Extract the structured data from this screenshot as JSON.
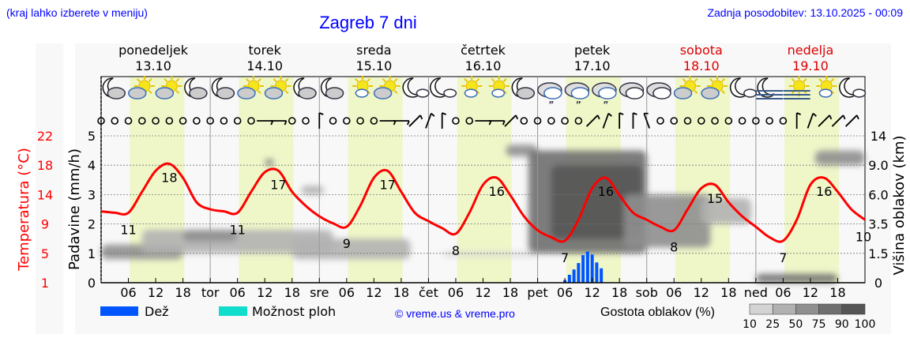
{
  "header": {
    "region_hint": "(kraj lahko izberete v meniju)",
    "title": "Zagreb 7 dni",
    "updated": "Zadnja posodobitev: 13.10.2025 - 00:09"
  },
  "colors": {
    "title": "#0000ff",
    "temperature": "#ff0000",
    "rain": "#0055ff",
    "showers": "#11ddcc",
    "daylight": "#eff7c9",
    "weekend": "#dd0000"
  },
  "chart_data": {
    "type": "line",
    "days": [
      {
        "name": "ponedeljek",
        "date": "13.10",
        "abbr": "",
        "weekend": false
      },
      {
        "name": "torek",
        "date": "14.10",
        "abbr": "tor",
        "weekend": false
      },
      {
        "name": "sreda",
        "date": "15.10",
        "abbr": "sre",
        "weekend": false
      },
      {
        "name": "četrtek",
        "date": "16.10",
        "abbr": "čet",
        "weekend": false
      },
      {
        "name": "petek",
        "date": "17.10",
        "abbr": "pet",
        "weekend": false
      },
      {
        "name": "sobota",
        "date": "18.10",
        "abbr": "sob",
        "weekend": true
      },
      {
        "name": "nedelja",
        "date": "19.10",
        "abbr": "ned",
        "weekend": true
      }
    ],
    "hour_ticks": [
      "06",
      "12",
      "18"
    ],
    "left_axis": {
      "label": "Padavine (mm/h)",
      "ticks": [
        "0",
        "1",
        "2",
        "3",
        "4",
        "5"
      ],
      "range": [
        0,
        5
      ]
    },
    "temp_axis": {
      "label": "Temperatura (°C)",
      "ticks": [
        "1",
        "5",
        "9",
        "14",
        "18",
        "22"
      ]
    },
    "right_axis": {
      "label": "Višina oblakov (km)",
      "ticks": [
        "0",
        "1.5",
        "3.5",
        "6.0",
        "9.0",
        "14"
      ]
    },
    "daylight_hours": [
      6.3,
      18.3
    ],
    "temperature_3h": [
      11.2,
      11,
      11,
      14,
      17,
      18,
      16,
      12.5,
      11.5,
      11.2,
      11,
      14,
      16.8,
      17,
      14,
      12,
      10.5,
      9.5,
      9,
      12,
      16,
      17,
      14,
      11,
      9.8,
      8.8,
      8,
      11,
      15,
      16,
      13.5,
      10.5,
      8.5,
      7.5,
      7,
      10,
      14.5,
      16,
      13.5,
      11,
      10,
      9,
      8.5,
      11.5,
      14.5,
      15,
      12.5,
      10.5,
      9,
      7.5,
      7,
      10,
      15,
      16,
      14,
      11.5,
      10
    ],
    "temp_labels": [
      {
        "day": 0,
        "min": "11",
        "max": "18"
      },
      {
        "day": 1,
        "min": "11",
        "max": "17"
      },
      {
        "day": 2,
        "min": "9",
        "max": "17"
      },
      {
        "day": 3,
        "min": "8",
        "max": "16"
      },
      {
        "day": 4,
        "min": "7",
        "max": "16"
      },
      {
        "day": 5,
        "min": "8",
        "max": "15"
      },
      {
        "day": 6,
        "min": "7",
        "max": "16"
      }
    ],
    "end_temp_label": "10",
    "rain": {
      "day": 4,
      "hours": [
        6,
        7,
        8,
        9,
        10,
        11,
        12,
        13,
        14
      ],
      "values": [
        0.09,
        0.27,
        0.45,
        0.67,
        0.94,
        1.06,
        0.96,
        0.69,
        0.49
      ]
    },
    "clouds": [
      {
        "t": [
          0,
          18
        ],
        "km": [
          1.2,
          2.1
        ],
        "density": 50
      },
      {
        "t": [
          9,
          51
        ],
        "km": [
          1.5,
          3.1
        ],
        "density": 40
      },
      {
        "t": [
          18,
          30
        ],
        "km": [
          2.3,
          3.1
        ],
        "density": 60
      },
      {
        "t": [
          36,
          38
        ],
        "km": [
          9,
          10
        ],
        "density": 75
      },
      {
        "t": [
          44,
          49
        ],
        "km": [
          6,
          6.9
        ],
        "density": 40
      },
      {
        "t": [
          42,
          68
        ],
        "km": [
          1.2,
          2.5
        ],
        "density": 25
      },
      {
        "t": [
          75,
          96
        ],
        "km": [
          1.35,
          1.6
        ],
        "density": 10
      },
      {
        "t": [
          89,
          96
        ],
        "km": [
          10.5,
          12.5
        ],
        "density": 50
      },
      {
        "t": [
          94,
          120
        ],
        "km": [
          1.5,
          11.5
        ],
        "density": 75
      },
      {
        "t": [
          99,
          119
        ],
        "km": [
          2.5,
          9
        ],
        "density": 90
      },
      {
        "t": [
          115,
          134
        ],
        "km": [
          1.9,
          6
        ],
        "density": 50
      },
      {
        "t": [
          132,
          143
        ],
        "km": [
          3.5,
          5.7
        ],
        "density": 25
      },
      {
        "t": [
          157,
          168
        ],
        "km": [
          9,
          11.5
        ],
        "density": 50
      },
      {
        "t": [
          144,
          162
        ],
        "km": [
          0,
          0.45
        ],
        "density": 75
      }
    ],
    "weather_icons": [
      "moon-cloud",
      "sun-cloud",
      "sun-cloud",
      "moon-cloud",
      "moon-cloud",
      "sun-cloud",
      "sun-cloud",
      "moon-cloud",
      "moon-cloud",
      "sun-small-cloud",
      "sun-cloud",
      "moon-small-cloud",
      "moon-small-cloud",
      "sun-small-cloud",
      "sun-small-cloud",
      "moon-cloud",
      "cloud-drizzle",
      "cloud-drizzle",
      "cloud-drizzle",
      "overcast",
      "overcast",
      "sun-cloud",
      "sun-cloud",
      "moon-small-cloud",
      "moon-fog",
      "sun-fog",
      "sun-small-cloud",
      "moon-small-cloud"
    ],
    "wind_3h": [
      "calm",
      "calm",
      "calm",
      "calm",
      "calm",
      "calm",
      "calm",
      "calm",
      "calm",
      "calm",
      "calm",
      "calm",
      "W",
      "W",
      "calm",
      "calm",
      "N",
      "calm",
      "calm",
      "calm",
      "calm",
      "W",
      "W",
      "NE",
      "NNE",
      "N",
      "calm",
      "calm",
      "W",
      "W",
      "NE",
      "calm",
      "calm",
      "calm",
      "calm",
      "calm",
      "NE",
      "NNE",
      "N",
      "N",
      "NNW",
      "calm",
      "calm",
      "calm",
      "calm",
      "calm",
      "calm",
      "calm",
      "calm",
      "calm",
      "calm",
      "N",
      "NNE",
      "NE",
      "NE",
      "NE"
    ],
    "legend": {
      "rain": "Dež",
      "showers": "Možnost ploh",
      "copyright": "© vreme.us & vreme.pro",
      "density_title": "Gostota oblakov (%)",
      "density_ticks": [
        "10",
        "25",
        "50",
        "75",
        "90",
        "100"
      ],
      "density_colors": [
        "#d3d3d3",
        "#b1b1b1",
        "#8f8f8f",
        "#6f6f6f",
        "#555555"
      ]
    }
  }
}
